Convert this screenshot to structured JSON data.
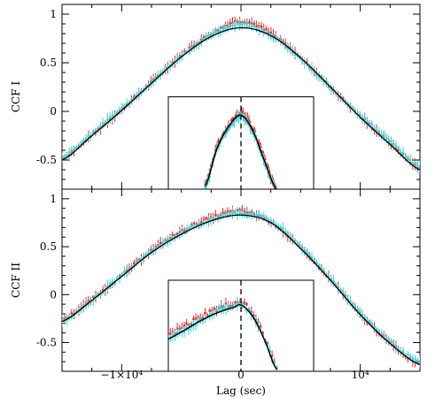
{
  "colors": {
    "model": "#000000",
    "series_red": "#ff2020",
    "series_cyan": "#30d8e0",
    "frame": "#000000"
  },
  "xlabel": "Lag (sec)",
  "xlim": [
    -15000,
    15000
  ],
  "x_ticks": [
    {
      "value": -10000,
      "label": "−1×10⁴"
    },
    {
      "value": 0,
      "label": "0"
    },
    {
      "value": 10000,
      "label": "10⁴"
    }
  ],
  "chart_data": [
    {
      "type": "line",
      "ylabel": "CCF I",
      "ylim": [
        -0.8,
        1.1
      ],
      "y_ticks": [
        {
          "value": 1,
          "label": "1"
        },
        {
          "value": 0.5,
          "label": "0.5"
        },
        {
          "value": 0,
          "label": "0"
        },
        {
          "value": -0.5,
          "label": "-0.5"
        }
      ],
      "x": [
        -15000,
        -12500,
        -10000,
        -7500,
        -5000,
        -2500,
        0,
        2500,
        5000,
        7500,
        10000,
        12500,
        15000
      ],
      "series": [
        {
          "values": [
            -0.48,
            -0.24,
            0.02,
            0.3,
            0.58,
            0.8,
            0.93,
            0.8,
            0.55,
            0.25,
            -0.05,
            -0.32,
            -0.58
          ]
        },
        {
          "values": [
            -0.47,
            -0.23,
            0.03,
            0.3,
            0.57,
            0.78,
            0.9,
            0.78,
            0.54,
            0.24,
            -0.04,
            -0.31,
            -0.57
          ]
        }
      ],
      "model": [
        -0.5,
        -0.25,
        0.01,
        0.29,
        0.56,
        0.77,
        0.86,
        0.78,
        0.55,
        0.25,
        -0.06,
        -0.34,
        -0.6
      ],
      "inset": {
        "x": [
          -3000,
          -2000,
          -1000,
          0,
          1000,
          2000,
          3000
        ],
        "series": [
          {
            "values": [
              -0.75,
              -0.35,
              -0.15,
              -0.02,
              -0.18,
              -0.5,
              -0.8
            ]
          },
          {
            "values": [
              -0.78,
              -0.38,
              -0.17,
              -0.05,
              -0.21,
              -0.53,
              -0.82
            ]
          }
        ],
        "model": [
          -0.77,
          -0.38,
          -0.15,
          -0.04,
          -0.2,
          -0.52,
          -0.81
        ]
      }
    },
    {
      "type": "line",
      "ylabel": "CCF II",
      "ylim": [
        -0.8,
        1.1
      ],
      "y_ticks": [
        {
          "value": 1,
          "label": "1"
        },
        {
          "value": 0.5,
          "label": "0.5"
        },
        {
          "value": 0,
          "label": "0"
        },
        {
          "value": -0.5,
          "label": "-0.5"
        }
      ],
      "x": [
        -15000,
        -12500,
        -10000,
        -7500,
        -5000,
        -2500,
        0,
        2500,
        5000,
        7500,
        10000,
        12500,
        15000
      ],
      "series": [
        {
          "values": [
            -0.26,
            -0.05,
            0.2,
            0.46,
            0.66,
            0.8,
            0.87,
            0.76,
            0.49,
            0.16,
            -0.2,
            -0.5,
            -0.72
          ]
        },
        {
          "values": [
            -0.27,
            -0.06,
            0.2,
            0.45,
            0.64,
            0.78,
            0.85,
            0.77,
            0.5,
            0.17,
            -0.19,
            -0.49,
            -0.71
          ]
        }
      ],
      "model": [
        -0.28,
        -0.06,
        0.19,
        0.44,
        0.63,
        0.77,
        0.83,
        0.75,
        0.48,
        0.15,
        -0.21,
        -0.51,
        -0.73
      ],
      "inset": {
        "x": [
          -6500,
          -5000,
          -3500,
          -2000,
          -500,
          0,
          1000,
          2000,
          3000
        ],
        "series": [
          {
            "values": [
              -0.44,
              -0.35,
              -0.24,
              -0.15,
              -0.09,
              -0.08,
              -0.2,
              -0.45,
              -0.75
            ]
          },
          {
            "values": [
              -0.47,
              -0.39,
              -0.28,
              -0.17,
              -0.12,
              -0.11,
              -0.22,
              -0.47,
              -0.77
            ]
          }
        ],
        "model": [
          -0.48,
          -0.39,
          -0.28,
          -0.19,
          -0.13,
          -0.11,
          -0.23,
          -0.48,
          -0.78
        ]
      }
    }
  ]
}
